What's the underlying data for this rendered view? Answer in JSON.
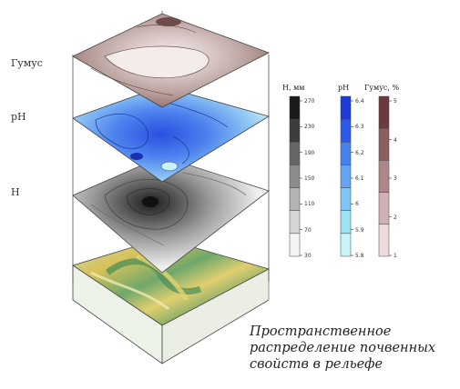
{
  "layers": {
    "humus_label": "Гумус",
    "ph_label": "pH",
    "h_label": "H"
  },
  "colorbars": [
    {
      "title": "H, мм",
      "ticks": [
        "270",
        "230",
        "190",
        "150",
        "110",
        "70",
        "30"
      ],
      "colors": [
        "#1a1a1a",
        "#3d3d3d",
        "#666666",
        "#8c8c8c",
        "#b3b3b3",
        "#d6d6d6",
        "#f4f4f4"
      ]
    },
    {
      "title": "pH",
      "ticks": [
        "6.4",
        "6.3",
        "6.2",
        "6.1",
        "6",
        "5.9",
        "5.8"
      ],
      "colors": [
        "#1d3bd6",
        "#2e58e6",
        "#4a80ee",
        "#64a4f2",
        "#80c6f4",
        "#9fe2f6",
        "#c8f4f8"
      ]
    },
    {
      "title": "Гумус, %",
      "ticks": [
        "5",
        "4",
        "3",
        "2",
        "1"
      ],
      "colors": [
        "#6a3a3f",
        "#8b5e62",
        "#ad878a",
        "#cfb1b3",
        "#ecdcdd"
      ]
    }
  ],
  "caption": {
    "line1": "Пространственное",
    "line2": "распределение почвенных",
    "line3": "свойств в рельефе"
  },
  "colors": {
    "humus_surface": "#b59b98",
    "ph_surface": "#5f8ff0",
    "h_surface": "#b8b8b8",
    "terrain_green": "#6fa86a",
    "terrain_yellow": "#d8c25a",
    "frame": "#444444"
  }
}
